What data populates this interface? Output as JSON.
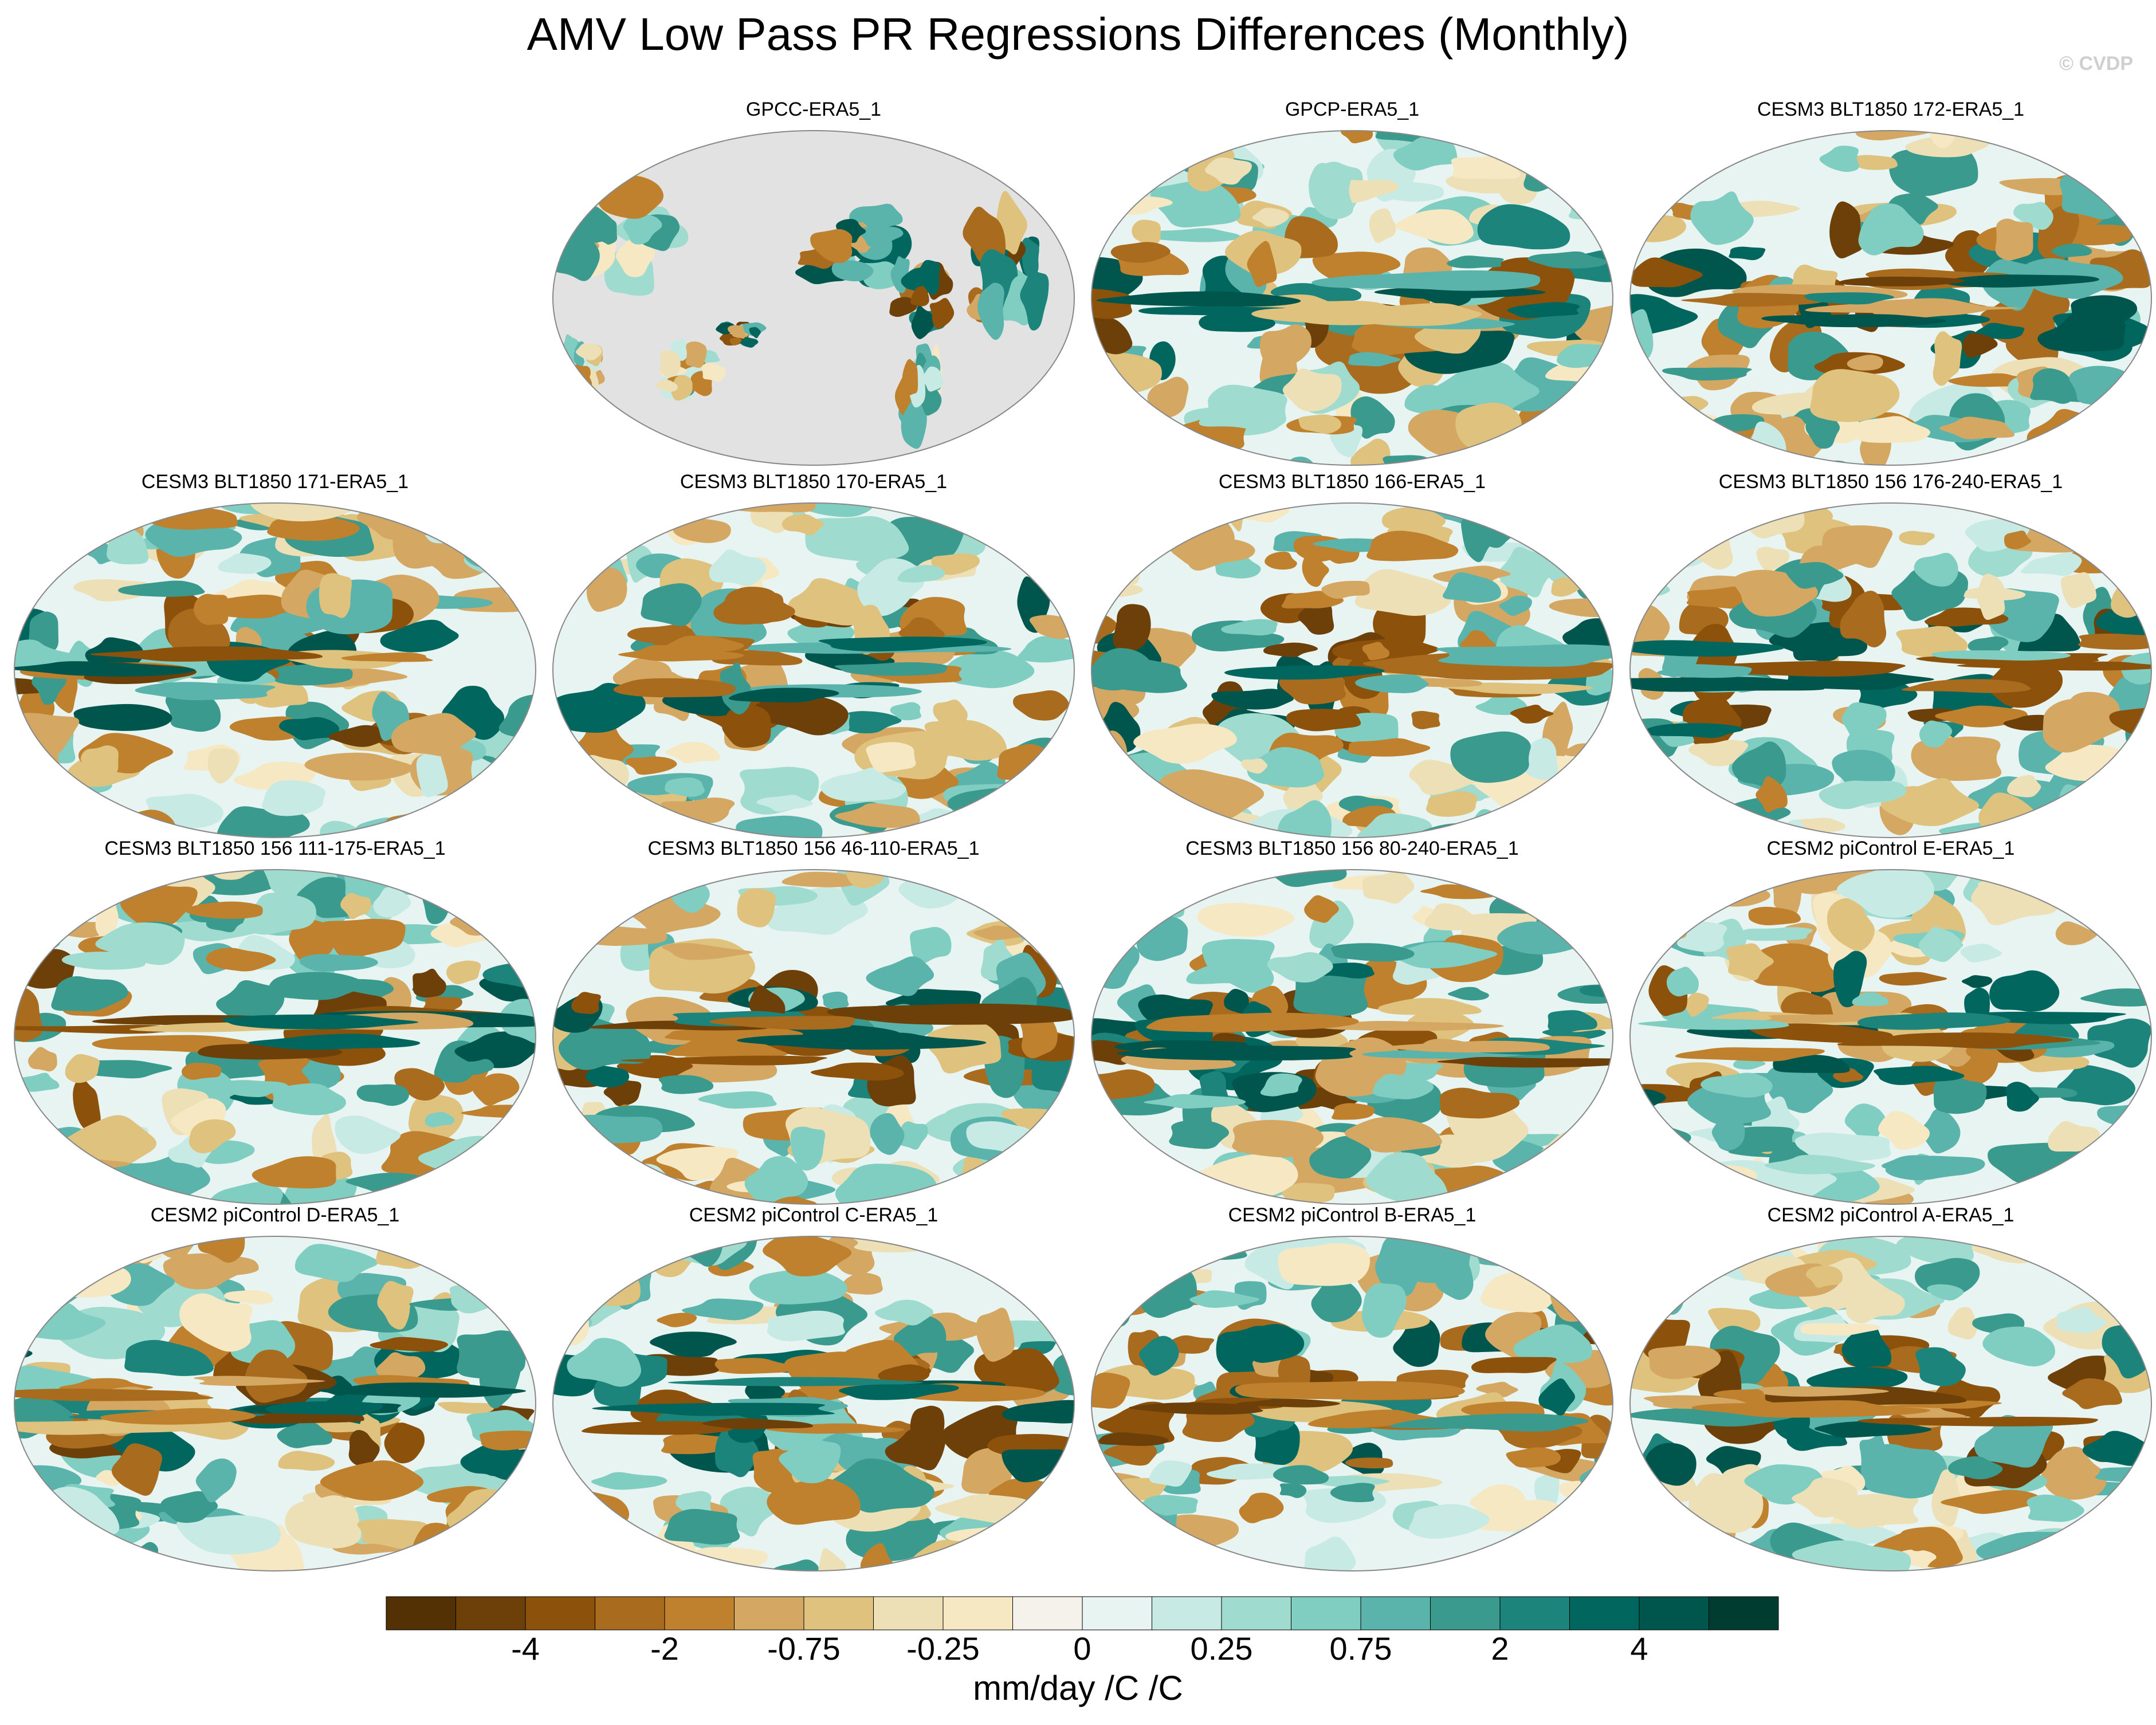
{
  "title": "AMV Low Pass PR Regressions Differences (Monthly)",
  "watermark": "© CVDP",
  "panels": [
    {
      "label": "GPCC-ERA5_1",
      "type": "land-only"
    },
    {
      "label": "GPCP-ERA5_1",
      "type": "full"
    },
    {
      "label": "CESM3 BLT1850 172-ERA5_1",
      "type": "full"
    },
    {
      "label": "CESM3 BLT1850 171-ERA5_1",
      "type": "full"
    },
    {
      "label": "CESM3 BLT1850 170-ERA5_1",
      "type": "full"
    },
    {
      "label": "CESM3 BLT1850 166-ERA5_1",
      "type": "full"
    },
    {
      "label": "CESM3 BLT1850 156 176-240-ERA5_1",
      "type": "full"
    },
    {
      "label": "CESM3 BLT1850 156 111-175-ERA5_1",
      "type": "full"
    },
    {
      "label": "CESM3 BLT1850 156 46-110-ERA5_1",
      "type": "full"
    },
    {
      "label": "CESM3 BLT1850 156 80-240-ERA5_1",
      "type": "full"
    },
    {
      "label": "CESM2 piControl E-ERA5_1",
      "type": "full"
    },
    {
      "label": "CESM2 piControl D-ERA5_1",
      "type": "full"
    },
    {
      "label": "CESM2 piControl C-ERA5_1",
      "type": "full"
    },
    {
      "label": "CESM2 piControl B-ERA5_1",
      "type": "full"
    },
    {
      "label": "CESM2 piControl A-ERA5_1",
      "type": "full"
    }
  ],
  "colorbar": {
    "colors": [
      "#543005",
      "#6e4009",
      "#8c510a",
      "#a96b1d",
      "#bf812d",
      "#d4a863",
      "#dfc27d",
      "#ede0b6",
      "#f6e8c3",
      "#f5f2eb",
      "#e8f4f2",
      "#c7eae5",
      "#9fdccf",
      "#80cdc1",
      "#5ab4ac",
      "#3a9a8e",
      "#1d847b",
      "#01665e",
      "#00564d",
      "#003c30"
    ],
    "tick_labels": [
      "-4",
      "-2",
      "-0.75",
      "-0.25",
      "0",
      "0.25",
      "0.75",
      "2",
      "4"
    ],
    "tick_boundaries": [
      2,
      4,
      6,
      8,
      10,
      12,
      14,
      16,
      18
    ],
    "units": "mm/day /C /C"
  }
}
